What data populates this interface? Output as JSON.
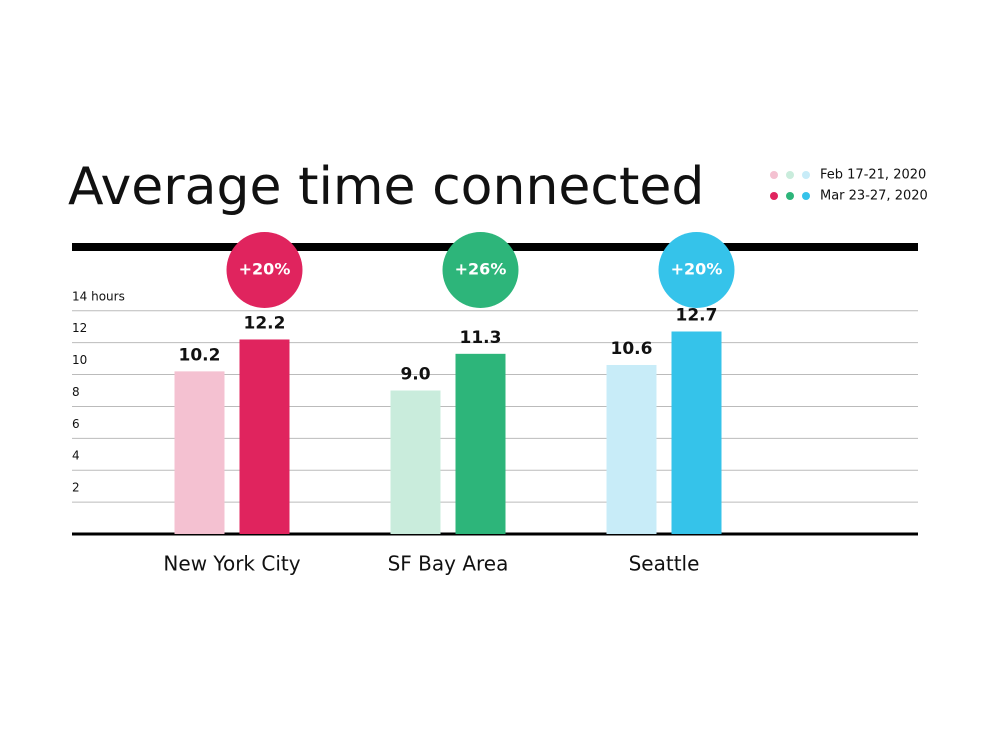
{
  "chart_data": {
    "type": "bar",
    "title": "Average time connected",
    "categories": [
      "New York City",
      "SF Bay Area",
      "Seattle"
    ],
    "series": [
      {
        "name": "Feb 17-21, 2020",
        "color": [
          "#f4c1d1",
          "#c9ecdc",
          "#c8ecf8"
        ],
        "values": [
          10.2,
          9.0,
          10.6
        ],
        "value_labels": [
          "10.2",
          "9.0",
          "10.6"
        ]
      },
      {
        "name": "Mar 23-27, 2020",
        "color": [
          "#e0245e",
          "#2db57a",
          "#35c3ea"
        ],
        "values": [
          12.2,
          11.3,
          12.7
        ]
      }
    ],
    "annotations": [
      "+20%",
      "+26%",
      "+20%"
    ],
    "ylim": [
      0,
      18
    ],
    "yticks": [
      2,
      4,
      6,
      8,
      10,
      12,
      {
        "value": 14,
        "label": "14 hours"
      }
    ],
    "grid": true
  }
}
